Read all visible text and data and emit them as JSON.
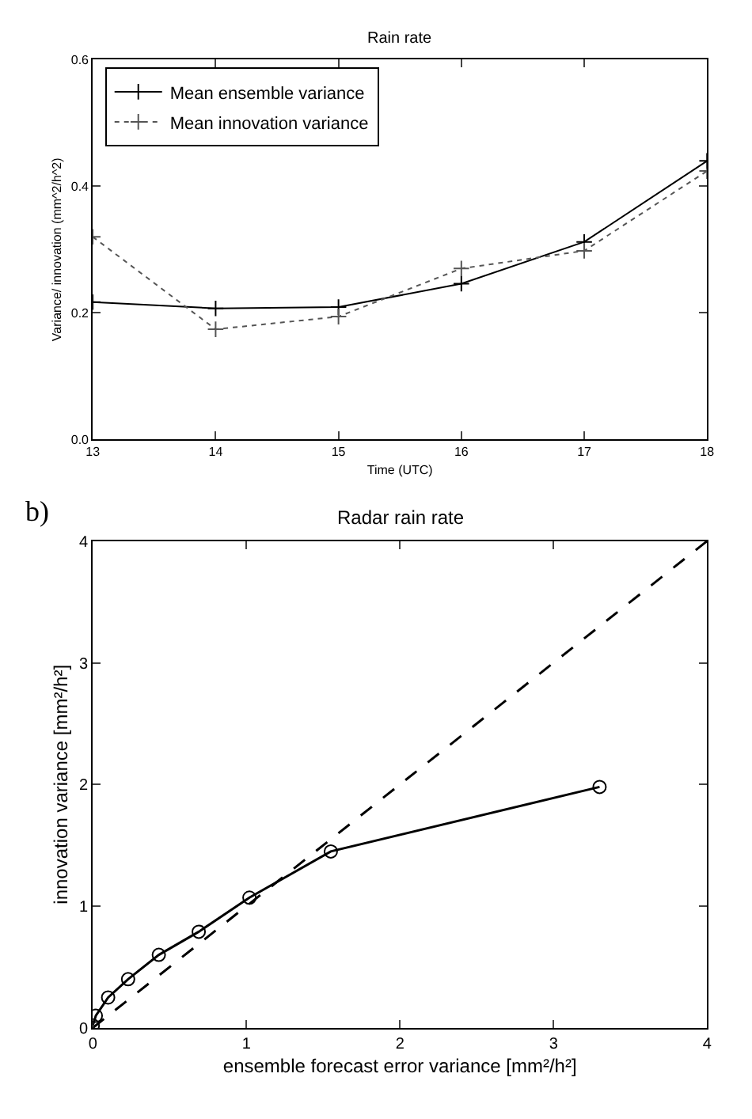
{
  "chart_data": [
    {
      "type": "line",
      "title": "Rain rate",
      "xlabel": "Time (UTC)",
      "ylabel": "Variance/ innovation (mm^2/h^2)",
      "x": [
        13,
        14,
        15,
        16,
        17,
        18
      ],
      "xlim": [
        13,
        18
      ],
      "xticks": [
        13,
        14,
        15,
        16,
        17,
        18
      ],
      "ylim": [
        0,
        0.6
      ],
      "yticks": [
        {
          "value": 0,
          "label": "0.0"
        },
        {
          "value": 0.2,
          "label": "0.2"
        },
        {
          "value": 0.4,
          "label": "0.4"
        },
        {
          "value": 0.6,
          "label": "0.6"
        }
      ],
      "legend": "top left",
      "marker": "cross",
      "series": [
        {
          "name": "Mean ensemble variance",
          "color": "#000000",
          "line_style": "solid",
          "values": [
            0.217,
            0.207,
            0.209,
            0.246,
            0.312,
            0.44
          ]
        },
        {
          "name": "Mean innovation variance",
          "color": "#555555",
          "line_style": "dotted",
          "values": [
            0.32,
            0.174,
            0.194,
            0.27,
            0.298,
            0.424
          ]
        }
      ]
    },
    {
      "type": "line",
      "title": "Radar rain rate",
      "xlabel": "ensemble forecast error variance [mm²/h²]",
      "ylabel": "innovation variance [mm²/h²]",
      "annotations": [
        "b)"
      ],
      "xlim": [
        0,
        4
      ],
      "xticks": [
        0,
        1,
        2,
        3,
        4
      ],
      "ylim": [
        0,
        4
      ],
      "yticks": [
        0,
        1,
        2,
        3,
        4
      ],
      "legend": false,
      "series": [
        {
          "color": "#000000",
          "line_style": "solid",
          "marker": "circle",
          "x": [
            0,
            0.02,
            0.1,
            0.23,
            0.43,
            0.69,
            1.02,
            1.55,
            3.3
          ],
          "values": [
            0.02,
            0.1,
            0.25,
            0.4,
            0.6,
            0.79,
            1.07,
            1.45,
            1.98
          ]
        },
        {
          "color": "#000000",
          "line_style": "dashed",
          "marker": "none",
          "x": [
            0,
            4
          ],
          "values": [
            0,
            4
          ]
        }
      ]
    }
  ]
}
